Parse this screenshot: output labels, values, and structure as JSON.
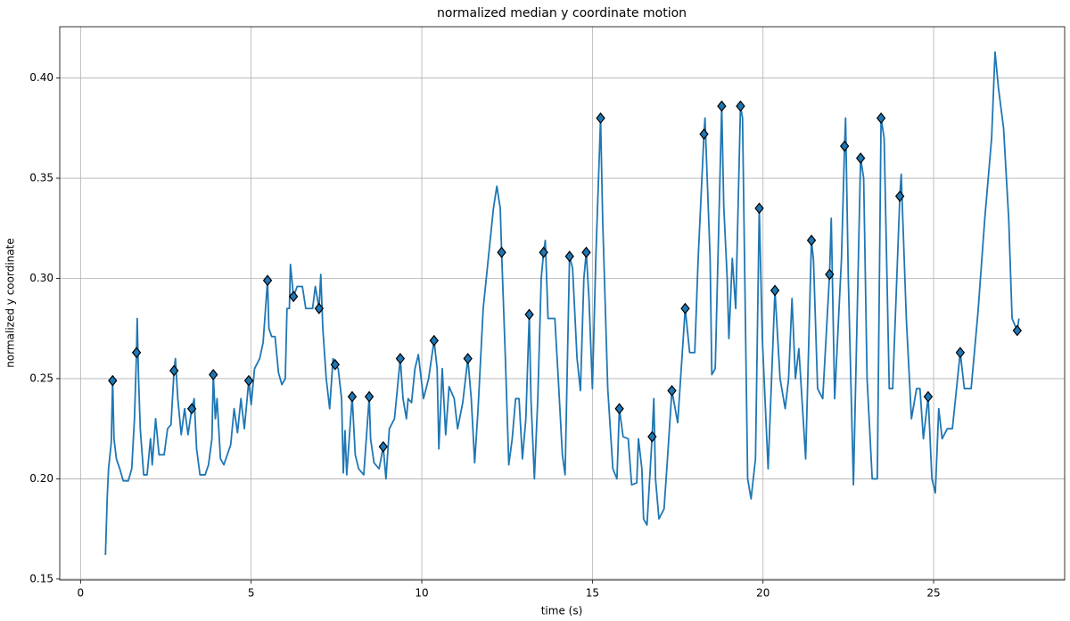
{
  "chart_data": {
    "type": "line",
    "title": "normalized median y coordinate motion",
    "xlabel": "time (s)",
    "ylabel": "normalized y coordinate",
    "xlim": [
      -0.61,
      28.84
    ],
    "ylim": [
      0.1495,
      0.4256
    ],
    "xticks": [
      0,
      5,
      10,
      15,
      20,
      25
    ],
    "yticks": [
      0.15,
      {
        "value": 0.2,
        "label": "0.20"
      },
      0.25,
      {
        "value": 0.3,
        "label": "0.30"
      },
      0.35,
      {
        "value": 0.4,
        "label": "0.40"
      }
    ],
    "grid": true,
    "series": [
      {
        "type": "line",
        "color": "#1f77b4",
        "x": [
          0.73,
          0.78,
          0.82,
          0.9,
          0.94,
          0.98,
          1.05,
          1.15,
          1.25,
          1.4,
          1.5,
          1.58,
          1.64,
          1.66,
          1.7,
          1.75,
          1.85,
          1.95,
          2.05,
          2.1,
          2.2,
          2.3,
          2.45,
          2.55,
          2.65,
          2.74,
          2.78,
          2.85,
          2.95,
          3.05,
          3.15,
          3.26,
          3.33,
          3.4,
          3.5,
          3.65,
          3.75,
          3.85,
          3.89,
          3.95,
          4.0,
          4.1,
          4.2,
          4.3,
          4.4,
          4.5,
          4.6,
          4.7,
          4.8,
          4.93,
          5.0,
          5.1,
          5.25,
          5.35,
          5.48,
          5.52,
          5.6,
          5.7,
          5.8,
          5.9,
          6.0,
          6.05,
          6.12,
          6.15,
          6.24,
          6.35,
          6.5,
          6.6,
          6.8,
          6.88,
          6.99,
          7.04,
          7.1,
          7.2,
          7.3,
          7.4,
          7.46,
          7.55,
          7.65,
          7.7,
          7.75,
          7.8,
          7.96,
          8.05,
          8.15,
          8.3,
          8.46,
          8.5,
          8.6,
          8.75,
          8.87,
          8.95,
          9.05,
          9.2,
          9.37,
          9.45,
          9.55,
          9.6,
          9.7,
          9.8,
          9.9,
          10.05,
          10.2,
          10.36,
          10.45,
          10.5,
          10.6,
          10.7,
          10.8,
          10.95,
          11.05,
          11.2,
          11.35,
          11.45,
          11.55,
          11.65,
          11.8,
          11.95,
          12.1,
          12.2,
          12.3,
          12.34,
          12.45,
          12.55,
          12.65,
          12.75,
          12.85,
          12.95,
          13.05,
          13.15,
          13.2,
          13.3,
          13.4,
          13.5,
          13.57,
          13.62,
          13.7,
          13.9,
          14.0,
          14.12,
          14.2,
          14.33,
          14.42,
          14.55,
          14.65,
          14.75,
          14.82,
          14.9,
          15.0,
          15.1,
          15.24,
          15.3,
          15.45,
          15.6,
          15.72,
          15.79,
          15.9,
          16.05,
          16.15,
          16.3,
          16.35,
          16.45,
          16.5,
          16.6,
          16.75,
          16.8,
          16.85,
          16.95,
          17.1,
          17.2,
          17.33,
          17.5,
          17.72,
          17.85,
          18.0,
          18.1,
          18.27,
          18.3,
          18.45,
          18.5,
          18.6,
          18.79,
          18.85,
          18.95,
          19.0,
          19.1,
          19.2,
          19.34,
          19.4,
          19.55,
          19.65,
          19.78,
          19.89,
          19.98,
          20.15,
          20.35,
          20.5,
          20.65,
          20.75,
          20.85,
          20.95,
          21.05,
          21.25,
          21.42,
          21.48,
          21.6,
          21.75,
          21.95,
          22.0,
          22.1,
          22.3,
          22.39,
          22.42,
          22.5,
          22.65,
          22.86,
          22.95,
          23.05,
          23.2,
          23.35,
          23.46,
          23.55,
          23.7,
          23.8,
          24.01,
          24.05,
          24.2,
          24.35,
          24.5,
          24.6,
          24.7,
          24.84,
          24.95,
          25.05,
          25.15,
          25.25,
          25.4,
          25.55,
          25.78,
          25.9,
          26.1,
          26.3,
          26.5,
          26.7,
          26.8,
          26.9,
          27.05,
          27.2,
          27.3,
          27.45,
          27.5
        ],
        "values": [
          0.162,
          0.19,
          0.205,
          0.218,
          0.249,
          0.22,
          0.21,
          0.205,
          0.199,
          0.199,
          0.205,
          0.23,
          0.263,
          0.28,
          0.25,
          0.225,
          0.202,
          0.202,
          0.22,
          0.207,
          0.23,
          0.212,
          0.212,
          0.225,
          0.227,
          0.254,
          0.26,
          0.24,
          0.222,
          0.235,
          0.222,
          0.235,
          0.24,
          0.215,
          0.202,
          0.202,
          0.207,
          0.22,
          0.252,
          0.23,
          0.24,
          0.21,
          0.207,
          0.212,
          0.217,
          0.235,
          0.223,
          0.24,
          0.225,
          0.249,
          0.237,
          0.255,
          0.26,
          0.268,
          0.299,
          0.275,
          0.271,
          0.271,
          0.253,
          0.247,
          0.25,
          0.285,
          0.285,
          0.307,
          0.291,
          0.296,
          0.296,
          0.285,
          0.285,
          0.296,
          0.285,
          0.302,
          0.275,
          0.25,
          0.235,
          0.26,
          0.257,
          0.255,
          0.24,
          0.203,
          0.224,
          0.202,
          0.241,
          0.212,
          0.205,
          0.202,
          0.241,
          0.22,
          0.208,
          0.205,
          0.216,
          0.2,
          0.225,
          0.23,
          0.26,
          0.24,
          0.23,
          0.24,
          0.238,
          0.255,
          0.262,
          0.24,
          0.25,
          0.269,
          0.255,
          0.215,
          0.255,
          0.222,
          0.246,
          0.24,
          0.225,
          0.238,
          0.26,
          0.24,
          0.208,
          0.235,
          0.285,
          0.31,
          0.335,
          0.346,
          0.335,
          0.313,
          0.26,
          0.207,
          0.22,
          0.24,
          0.24,
          0.21,
          0.23,
          0.282,
          0.24,
          0.2,
          0.24,
          0.3,
          0.313,
          0.319,
          0.28,
          0.28,
          0.25,
          0.212,
          0.202,
          0.311,
          0.305,
          0.26,
          0.244,
          0.3,
          0.313,
          0.29,
          0.245,
          0.31,
          0.38,
          0.33,
          0.245,
          0.205,
          0.2,
          0.235,
          0.221,
          0.22,
          0.197,
          0.198,
          0.22,
          0.205,
          0.18,
          0.177,
          0.221,
          0.24,
          0.2,
          0.18,
          0.185,
          0.21,
          0.244,
          0.228,
          0.285,
          0.263,
          0.263,
          0.31,
          0.372,
          0.38,
          0.31,
          0.252,
          0.255,
          0.386,
          0.336,
          0.3,
          0.27,
          0.31,
          0.285,
          0.386,
          0.38,
          0.2,
          0.19,
          0.21,
          0.335,
          0.27,
          0.205,
          0.294,
          0.25,
          0.235,
          0.25,
          0.29,
          0.25,
          0.265,
          0.21,
          0.319,
          0.309,
          0.245,
          0.24,
          0.302,
          0.33,
          0.24,
          0.31,
          0.366,
          0.38,
          0.3,
          0.197,
          0.36,
          0.35,
          0.25,
          0.2,
          0.2,
          0.38,
          0.37,
          0.245,
          0.245,
          0.341,
          0.352,
          0.28,
          0.23,
          0.245,
          0.245,
          0.22,
          0.241,
          0.2,
          0.193,
          0.235,
          0.22,
          0.225,
          0.225,
          0.263,
          0.245,
          0.245,
          0.283,
          0.33,
          0.37,
          0.413,
          0.395,
          0.375,
          0.33,
          0.28,
          0.274,
          0.28
        ]
      },
      {
        "type": "scatter",
        "marker": "diamond",
        "color": "#1f77b4",
        "edgecolor": "#000000",
        "x": [
          0.94,
          1.64,
          2.74,
          3.26,
          3.89,
          4.93,
          5.48,
          6.24,
          6.99,
          7.46,
          7.96,
          8.46,
          8.87,
          9.37,
          10.36,
          11.35,
          12.34,
          13.15,
          13.57,
          14.33,
          14.82,
          15.24,
          15.79,
          16.75,
          17.33,
          17.72,
          18.27,
          18.79,
          19.34,
          19.89,
          20.35,
          21.42,
          21.95,
          22.39,
          22.86,
          23.46,
          24.01,
          24.84,
          25.78,
          27.45
        ],
        "values": [
          0.249,
          0.263,
          0.254,
          0.235,
          0.252,
          0.249,
          0.299,
          0.291,
          0.285,
          0.257,
          0.241,
          0.241,
          0.216,
          0.26,
          0.269,
          0.26,
          0.313,
          0.282,
          0.313,
          0.311,
          0.313,
          0.38,
          0.235,
          0.221,
          0.244,
          0.285,
          0.372,
          0.386,
          0.386,
          0.335,
          0.294,
          0.319,
          0.302,
          0.366,
          0.36,
          0.38,
          0.341,
          0.241,
          0.263,
          0.274
        ]
      }
    ]
  }
}
